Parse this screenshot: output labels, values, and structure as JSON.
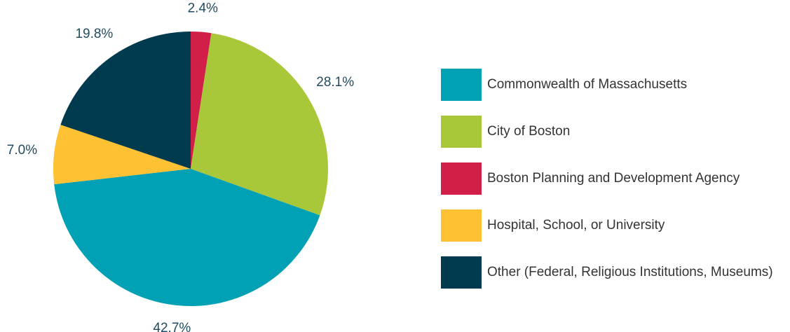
{
  "chart_data": {
    "type": "pie",
    "categories": [
      "Commonwealth of Massachusetts",
      "City of Boston",
      "Boston Planning and Development Agency",
      "Hospital, School, or University",
      "Other (Federal, Religious Institutions, Museums)"
    ],
    "values": [
      42.7,
      28.1,
      2.4,
      7.0,
      19.8
    ],
    "value_labels": [
      "42.7%",
      "28.1%",
      "2.4%",
      "7.0%",
      "19.8%"
    ],
    "colors": [
      "#00a0b5",
      "#a8c83a",
      "#d21f4a",
      "#fdc133",
      "#003a4f"
    ],
    "slice_order": [
      2,
      1,
      0,
      3,
      4
    ]
  }
}
